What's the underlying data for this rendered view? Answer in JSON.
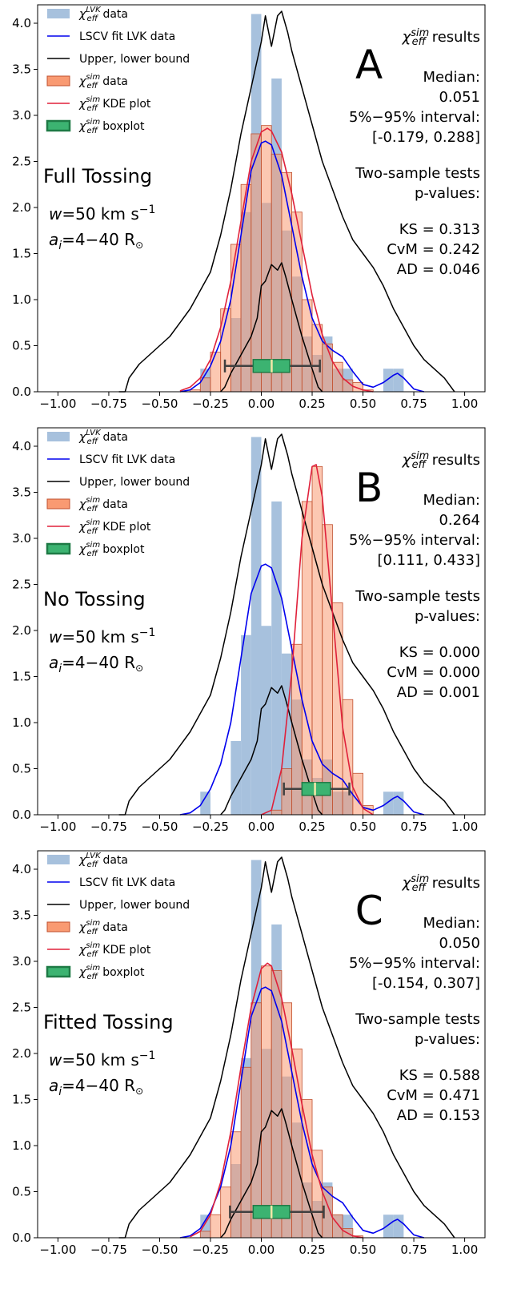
{
  "legend": {
    "lvk_data": {
      "sym": "χ",
      "sub": "eff",
      "sup": "LVK",
      "text": " data"
    },
    "lscv_fit": "LSCV fit LVK data",
    "bounds": "Upper, lower bound",
    "sim_data": {
      "sym": "χ",
      "sub": "eff",
      "sup": "sim",
      "text": " data"
    },
    "sim_kde": {
      "sym": "χ",
      "sub": "eff",
      "sup": "sim",
      "text": " KDE plot"
    },
    "sim_box": {
      "sym": "χ",
      "sub": "eff",
      "sup": "sim",
      "text": " boxplot"
    }
  },
  "results_title": {
    "sym": "χ",
    "sub": "eff",
    "sup": "sim",
    "text": " results"
  },
  "median_label": "Median:",
  "interval_label": "5%−95% interval:",
  "tests_title_1": "Two-sample tests",
  "tests_title_2": "p-values:",
  "param_w": {
    "lhs": "w",
    "eq": "=50 km s",
    "sup": "−1"
  },
  "param_a": {
    "lhs": "a",
    "sub": "i",
    "eq": "=4−40 R",
    "sym": "⊙"
  },
  "colors": {
    "lvk_hist": "#a7c1dd",
    "lscv": "#0000ee",
    "bounds": "#000000",
    "sim_hist": "#f99a72",
    "sim_hist_edge": "#c0502f",
    "kde": "#e0203a",
    "box_fill": "#3cb371",
    "box_edge": "#1e7a45",
    "whisker": "#404040",
    "median_line": "#f5e6a8"
  },
  "chart_data": [
    {
      "type": "bar",
      "panel_letter": "A",
      "scenario": "Full Tossing",
      "xlim": [
        -1.1,
        1.1
      ],
      "ylim": [
        0,
        4.2
      ],
      "xticks": [
        "−1.00",
        "−0.75",
        "−0.50",
        "−0.25",
        "0.00",
        "0.25",
        "0.50",
        "0.75",
        "1.00"
      ],
      "xtick_values": [
        -1.0,
        -0.75,
        -0.5,
        -0.25,
        0.0,
        0.25,
        0.5,
        0.75,
        1.0
      ],
      "yticks": [
        "0.0",
        "0.5",
        "1.0",
        "1.5",
        "2.0",
        "2.5",
        "3.0",
        "3.5",
        "4.0"
      ],
      "ytick_values": [
        0,
        0.5,
        1.0,
        1.5,
        2.0,
        2.5,
        3.0,
        3.5,
        4.0
      ],
      "lvk_hist": {
        "bin_width": 0.05,
        "bin_starts": [
          -0.3,
          -0.25,
          -0.2,
          -0.15,
          -0.1,
          -0.05,
          0.0,
          0.05,
          0.1,
          0.15,
          0.2,
          0.25,
          0.3,
          0.35,
          0.4,
          0.45,
          0.5,
          0.55,
          0.6,
          0.65
        ],
        "values": [
          0.25,
          0.0,
          0.0,
          0.8,
          1.95,
          4.1,
          2.05,
          3.4,
          1.75,
          1.25,
          0.6,
          0.4,
          0.6,
          0.25,
          0.25,
          0.0,
          0.0,
          0.0,
          0.25,
          0.25
        ]
      },
      "sim_hist": {
        "bin_width": 0.05,
        "bin_starts": [
          -0.35,
          -0.3,
          -0.25,
          -0.2,
          -0.15,
          -0.1,
          -0.05,
          0.0,
          0.05,
          0.1,
          0.15,
          0.2,
          0.25,
          0.3,
          0.35,
          0.4,
          0.45,
          0.5
        ],
        "values": [
          0.02,
          0.15,
          0.43,
          0.9,
          1.6,
          2.25,
          2.8,
          2.89,
          2.58,
          2.38,
          1.95,
          1.0,
          0.73,
          0.52,
          0.32,
          0.13,
          0.1,
          0.02
        ]
      },
      "kde": {
        "x": [
          -0.4,
          -0.35,
          -0.3,
          -0.25,
          -0.2,
          -0.15,
          -0.1,
          -0.05,
          0.0,
          0.03,
          0.05,
          0.1,
          0.15,
          0.2,
          0.25,
          0.3,
          0.35,
          0.4,
          0.45,
          0.5,
          0.55
        ],
        "y": [
          0.01,
          0.05,
          0.15,
          0.35,
          0.7,
          1.2,
          1.85,
          2.5,
          2.82,
          2.86,
          2.83,
          2.6,
          2.15,
          1.6,
          1.05,
          0.62,
          0.33,
          0.15,
          0.06,
          0.02,
          0.0
        ]
      },
      "box": {
        "whisker_low": -0.179,
        "q1": -0.04,
        "median": 0.051,
        "q3": 0.14,
        "whisker_high": 0.288
      },
      "median": "0.051",
      "interval": "[-0.179, 0.288]",
      "tests": {
        "ks": "KS = 0.313",
        "cvm": "CvM = 0.242",
        "ad": "AD = 0.046"
      }
    },
    {
      "type": "bar",
      "panel_letter": "B",
      "scenario": "No Tossing",
      "xlim": [
        -1.1,
        1.1
      ],
      "ylim": [
        0,
        4.2
      ],
      "xticks": [
        "−1.00",
        "−0.75",
        "−0.50",
        "−0.25",
        "0.00",
        "0.25",
        "0.50",
        "0.75",
        "1.00"
      ],
      "xtick_values": [
        -1.0,
        -0.75,
        -0.5,
        -0.25,
        0.0,
        0.25,
        0.5,
        0.75,
        1.0
      ],
      "yticks": [
        "0.0",
        "0.5",
        "1.0",
        "1.5",
        "2.0",
        "2.5",
        "3.0",
        "3.5",
        "4.0"
      ],
      "ytick_values": [
        0,
        0.5,
        1.0,
        1.5,
        2.0,
        2.5,
        3.0,
        3.5,
        4.0
      ],
      "lvk_hist": {
        "bin_width": 0.05,
        "bin_starts": [
          -0.3,
          -0.25,
          -0.2,
          -0.15,
          -0.1,
          -0.05,
          0.0,
          0.05,
          0.1,
          0.15,
          0.2,
          0.25,
          0.3,
          0.35,
          0.4,
          0.45,
          0.5,
          0.55,
          0.6,
          0.65
        ],
        "values": [
          0.25,
          0.0,
          0.0,
          0.8,
          1.95,
          4.1,
          2.05,
          3.4,
          1.75,
          1.25,
          0.6,
          0.4,
          0.6,
          0.25,
          0.25,
          0.0,
          0.0,
          0.0,
          0.25,
          0.25
        ]
      },
      "sim_hist": {
        "bin_width": 0.05,
        "bin_starts": [
          0.05,
          0.1,
          0.15,
          0.2,
          0.25,
          0.3,
          0.35,
          0.4,
          0.45,
          0.5
        ],
        "values": [
          0.05,
          0.5,
          1.85,
          3.4,
          3.78,
          3.15,
          2.3,
          1.25,
          0.45,
          0.1
        ]
      },
      "kde": {
        "x": [
          0.0,
          0.05,
          0.1,
          0.15,
          0.2,
          0.25,
          0.27,
          0.3,
          0.35,
          0.4,
          0.45,
          0.5,
          0.55
        ],
        "y": [
          0.0,
          0.05,
          0.5,
          1.55,
          3.0,
          3.78,
          3.8,
          3.45,
          2.2,
          0.95,
          0.3,
          0.07,
          0.0
        ]
      },
      "box": {
        "whisker_low": 0.111,
        "q1": 0.2,
        "median": 0.264,
        "q3": 0.34,
        "whisker_high": 0.433
      },
      "median": "0.264",
      "interval": "[0.111, 0.433]",
      "tests": {
        "ks": "KS = 0.000",
        "cvm": "CvM = 0.000",
        "ad": "AD = 0.001"
      }
    },
    {
      "type": "bar",
      "panel_letter": "C",
      "scenario": "Fitted Tossing",
      "xlim": [
        -1.1,
        1.1
      ],
      "ylim": [
        0,
        4.2
      ],
      "xticks": [
        "−1.00",
        "−0.75",
        "−0.50",
        "−0.25",
        "0.00",
        "0.25",
        "0.50",
        "0.75",
        "1.00"
      ],
      "xtick_values": [
        -1.0,
        -0.75,
        -0.5,
        -0.25,
        0.0,
        0.25,
        0.5,
        0.75,
        1.0
      ],
      "yticks": [
        "0.0",
        "0.5",
        "1.0",
        "1.5",
        "2.0",
        "2.5",
        "3.0",
        "3.5",
        "4.0"
      ],
      "ytick_values": [
        0,
        0.5,
        1.0,
        1.5,
        2.0,
        2.5,
        3.0,
        3.5,
        4.0
      ],
      "lvk_hist": {
        "bin_width": 0.05,
        "bin_starts": [
          -0.3,
          -0.25,
          -0.2,
          -0.15,
          -0.1,
          -0.05,
          0.0,
          0.05,
          0.1,
          0.15,
          0.2,
          0.25,
          0.3,
          0.35,
          0.4,
          0.45,
          0.5,
          0.55,
          0.6,
          0.65
        ],
        "values": [
          0.25,
          0.0,
          0.0,
          0.8,
          1.95,
          4.1,
          2.05,
          3.4,
          1.75,
          1.25,
          0.6,
          0.4,
          0.6,
          0.25,
          0.25,
          0.0,
          0.0,
          0.0,
          0.25,
          0.25
        ]
      },
      "sim_hist": {
        "bin_width": 0.05,
        "bin_starts": [
          -0.3,
          -0.25,
          -0.2,
          -0.15,
          -0.1,
          -0.05,
          0.0,
          0.05,
          0.1,
          0.15,
          0.2,
          0.25,
          0.3,
          0.35,
          0.4,
          0.45
        ],
        "values": [
          0.07,
          0.25,
          0.55,
          1.15,
          1.85,
          2.55,
          2.95,
          2.9,
          2.55,
          2.05,
          1.5,
          0.95,
          0.55,
          0.25,
          0.1,
          0.02
        ]
      },
      "kde": {
        "x": [
          -0.35,
          -0.3,
          -0.25,
          -0.2,
          -0.15,
          -0.1,
          -0.05,
          0.0,
          0.03,
          0.05,
          0.1,
          0.15,
          0.2,
          0.25,
          0.3,
          0.35,
          0.4,
          0.45,
          0.5
        ],
        "y": [
          0.01,
          0.07,
          0.25,
          0.6,
          1.15,
          1.85,
          2.5,
          2.92,
          2.98,
          2.95,
          2.6,
          2.05,
          1.45,
          0.9,
          0.5,
          0.22,
          0.08,
          0.02,
          0.0
        ]
      },
      "box": {
        "whisker_low": -0.154,
        "q1": -0.04,
        "median": 0.05,
        "q3": 0.14,
        "whisker_high": 0.307
      },
      "median": "0.050",
      "interval": "[-0.154, 0.307]",
      "tests": {
        "ks": "KS = 0.588",
        "cvm": "CvM = 0.471",
        "ad": "AD = 0.153"
      }
    }
  ],
  "shared_curves": {
    "lscv": {
      "x": [
        -0.4,
        -0.35,
        -0.3,
        -0.25,
        -0.2,
        -0.15,
        -0.1,
        -0.05,
        0.0,
        0.02,
        0.05,
        0.1,
        0.15,
        0.2,
        0.25,
        0.3,
        0.35,
        0.4,
        0.45,
        0.5,
        0.55,
        0.6,
        0.65,
        0.67,
        0.7,
        0.75,
        0.8
      ],
      "y": [
        0.0,
        0.02,
        0.1,
        0.28,
        0.55,
        1.0,
        1.7,
        2.4,
        2.7,
        2.72,
        2.68,
        2.35,
        1.8,
        1.25,
        0.8,
        0.55,
        0.45,
        0.38,
        0.22,
        0.08,
        0.05,
        0.1,
        0.18,
        0.2,
        0.15,
        0.03,
        0.0
      ]
    },
    "upper": {
      "x": [
        -0.7,
        -0.67,
        -0.65,
        -0.6,
        -0.55,
        -0.5,
        -0.45,
        -0.4,
        -0.35,
        -0.3,
        -0.25,
        -0.2,
        -0.15,
        -0.1,
        -0.05,
        0.0,
        0.02,
        0.05,
        0.08,
        0.1,
        0.13,
        0.15,
        0.2,
        0.25,
        0.3,
        0.35,
        0.4,
        0.45,
        0.5,
        0.55,
        0.6,
        0.65,
        0.7,
        0.75,
        0.8,
        0.85,
        0.9,
        0.95
      ],
      "y": [
        0.0,
        0.0,
        0.15,
        0.3,
        0.4,
        0.5,
        0.6,
        0.75,
        0.9,
        1.1,
        1.3,
        1.7,
        2.2,
        2.8,
        3.3,
        3.8,
        4.08,
        3.75,
        4.08,
        4.13,
        3.9,
        3.7,
        3.3,
        2.9,
        2.5,
        2.2,
        1.9,
        1.65,
        1.5,
        1.35,
        1.15,
        0.9,
        0.7,
        0.5,
        0.35,
        0.25,
        0.15,
        0.0
      ]
    },
    "lower": {
      "x": [
        -0.2,
        -0.18,
        -0.15,
        -0.1,
        -0.05,
        -0.02,
        0.0,
        0.02,
        0.05,
        0.08,
        0.1,
        0.12,
        0.15,
        0.2,
        0.25,
        0.28,
        0.3
      ],
      "y": [
        0.0,
        0.05,
        0.2,
        0.4,
        0.6,
        0.8,
        1.15,
        1.2,
        1.38,
        1.32,
        1.4,
        1.25,
        1.0,
        0.6,
        0.25,
        0.05,
        0.0
      ]
    }
  }
}
